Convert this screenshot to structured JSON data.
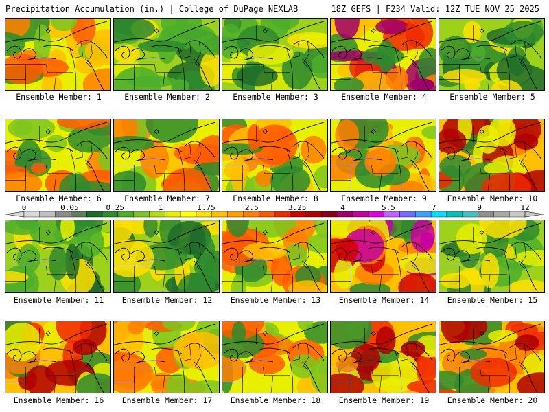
{
  "header": {
    "title": "Precipitation Accumulation (in.) | College of DuPage NEXLAB",
    "run_info": "18Z GEFS | F234 Valid: 12Z TUE NOV 25 2025"
  },
  "caption_prefix": "Ensemble Member:",
  "colorscale": {
    "labels": [
      "0",
      "0.05",
      "0.25",
      "1",
      "1.75",
      "2.5",
      "3.25",
      "4",
      "5.5",
      "7",
      "9",
      "12"
    ],
    "colors": [
      "#d9d9d9",
      "#bfbfbf",
      "#8c8c8c",
      "#5f7f5f",
      "#1d6b2b",
      "#2e8b2e",
      "#4caf2a",
      "#7cc61e",
      "#b5dc12",
      "#e8f000",
      "#ffff00",
      "#ffe000",
      "#ffc000",
      "#ffa000",
      "#ff7f00",
      "#ff5a00",
      "#f02a00",
      "#d40000",
      "#b00000",
      "#8b0018",
      "#a0006a",
      "#c800a0",
      "#e000e0",
      "#c060ff",
      "#7070ff",
      "#40a0ff",
      "#00e0ff",
      "#00c0c0",
      "#40c0c0",
      "#909090",
      "#a8a8a8",
      "#c8c8c8"
    ]
  },
  "members": [
    {
      "label": "1",
      "intensity": "moderate"
    },
    {
      "label": "2",
      "intensity": "light"
    },
    {
      "label": "3",
      "intensity": "light"
    },
    {
      "label": "4",
      "intensity": "heavy-southeast"
    },
    {
      "label": "5",
      "intensity": "light"
    },
    {
      "label": "6",
      "intensity": "moderate"
    },
    {
      "label": "7",
      "intensity": "moderate"
    },
    {
      "label": "8",
      "intensity": "moderate"
    },
    {
      "label": "9",
      "intensity": "moderate"
    },
    {
      "label": "10",
      "intensity": "heavy"
    },
    {
      "label": "11",
      "intensity": "light"
    },
    {
      "label": "12",
      "intensity": "light"
    },
    {
      "label": "13",
      "intensity": "moderate"
    },
    {
      "label": "14",
      "intensity": "heavy-northeast"
    },
    {
      "label": "15",
      "intensity": "light"
    },
    {
      "label": "16",
      "intensity": "heavy"
    },
    {
      "label": "17",
      "intensity": "moderate"
    },
    {
      "label": "18",
      "intensity": "moderate"
    },
    {
      "label": "19",
      "intensity": "heavy"
    },
    {
      "label": "20",
      "intensity": "heavy"
    }
  ]
}
